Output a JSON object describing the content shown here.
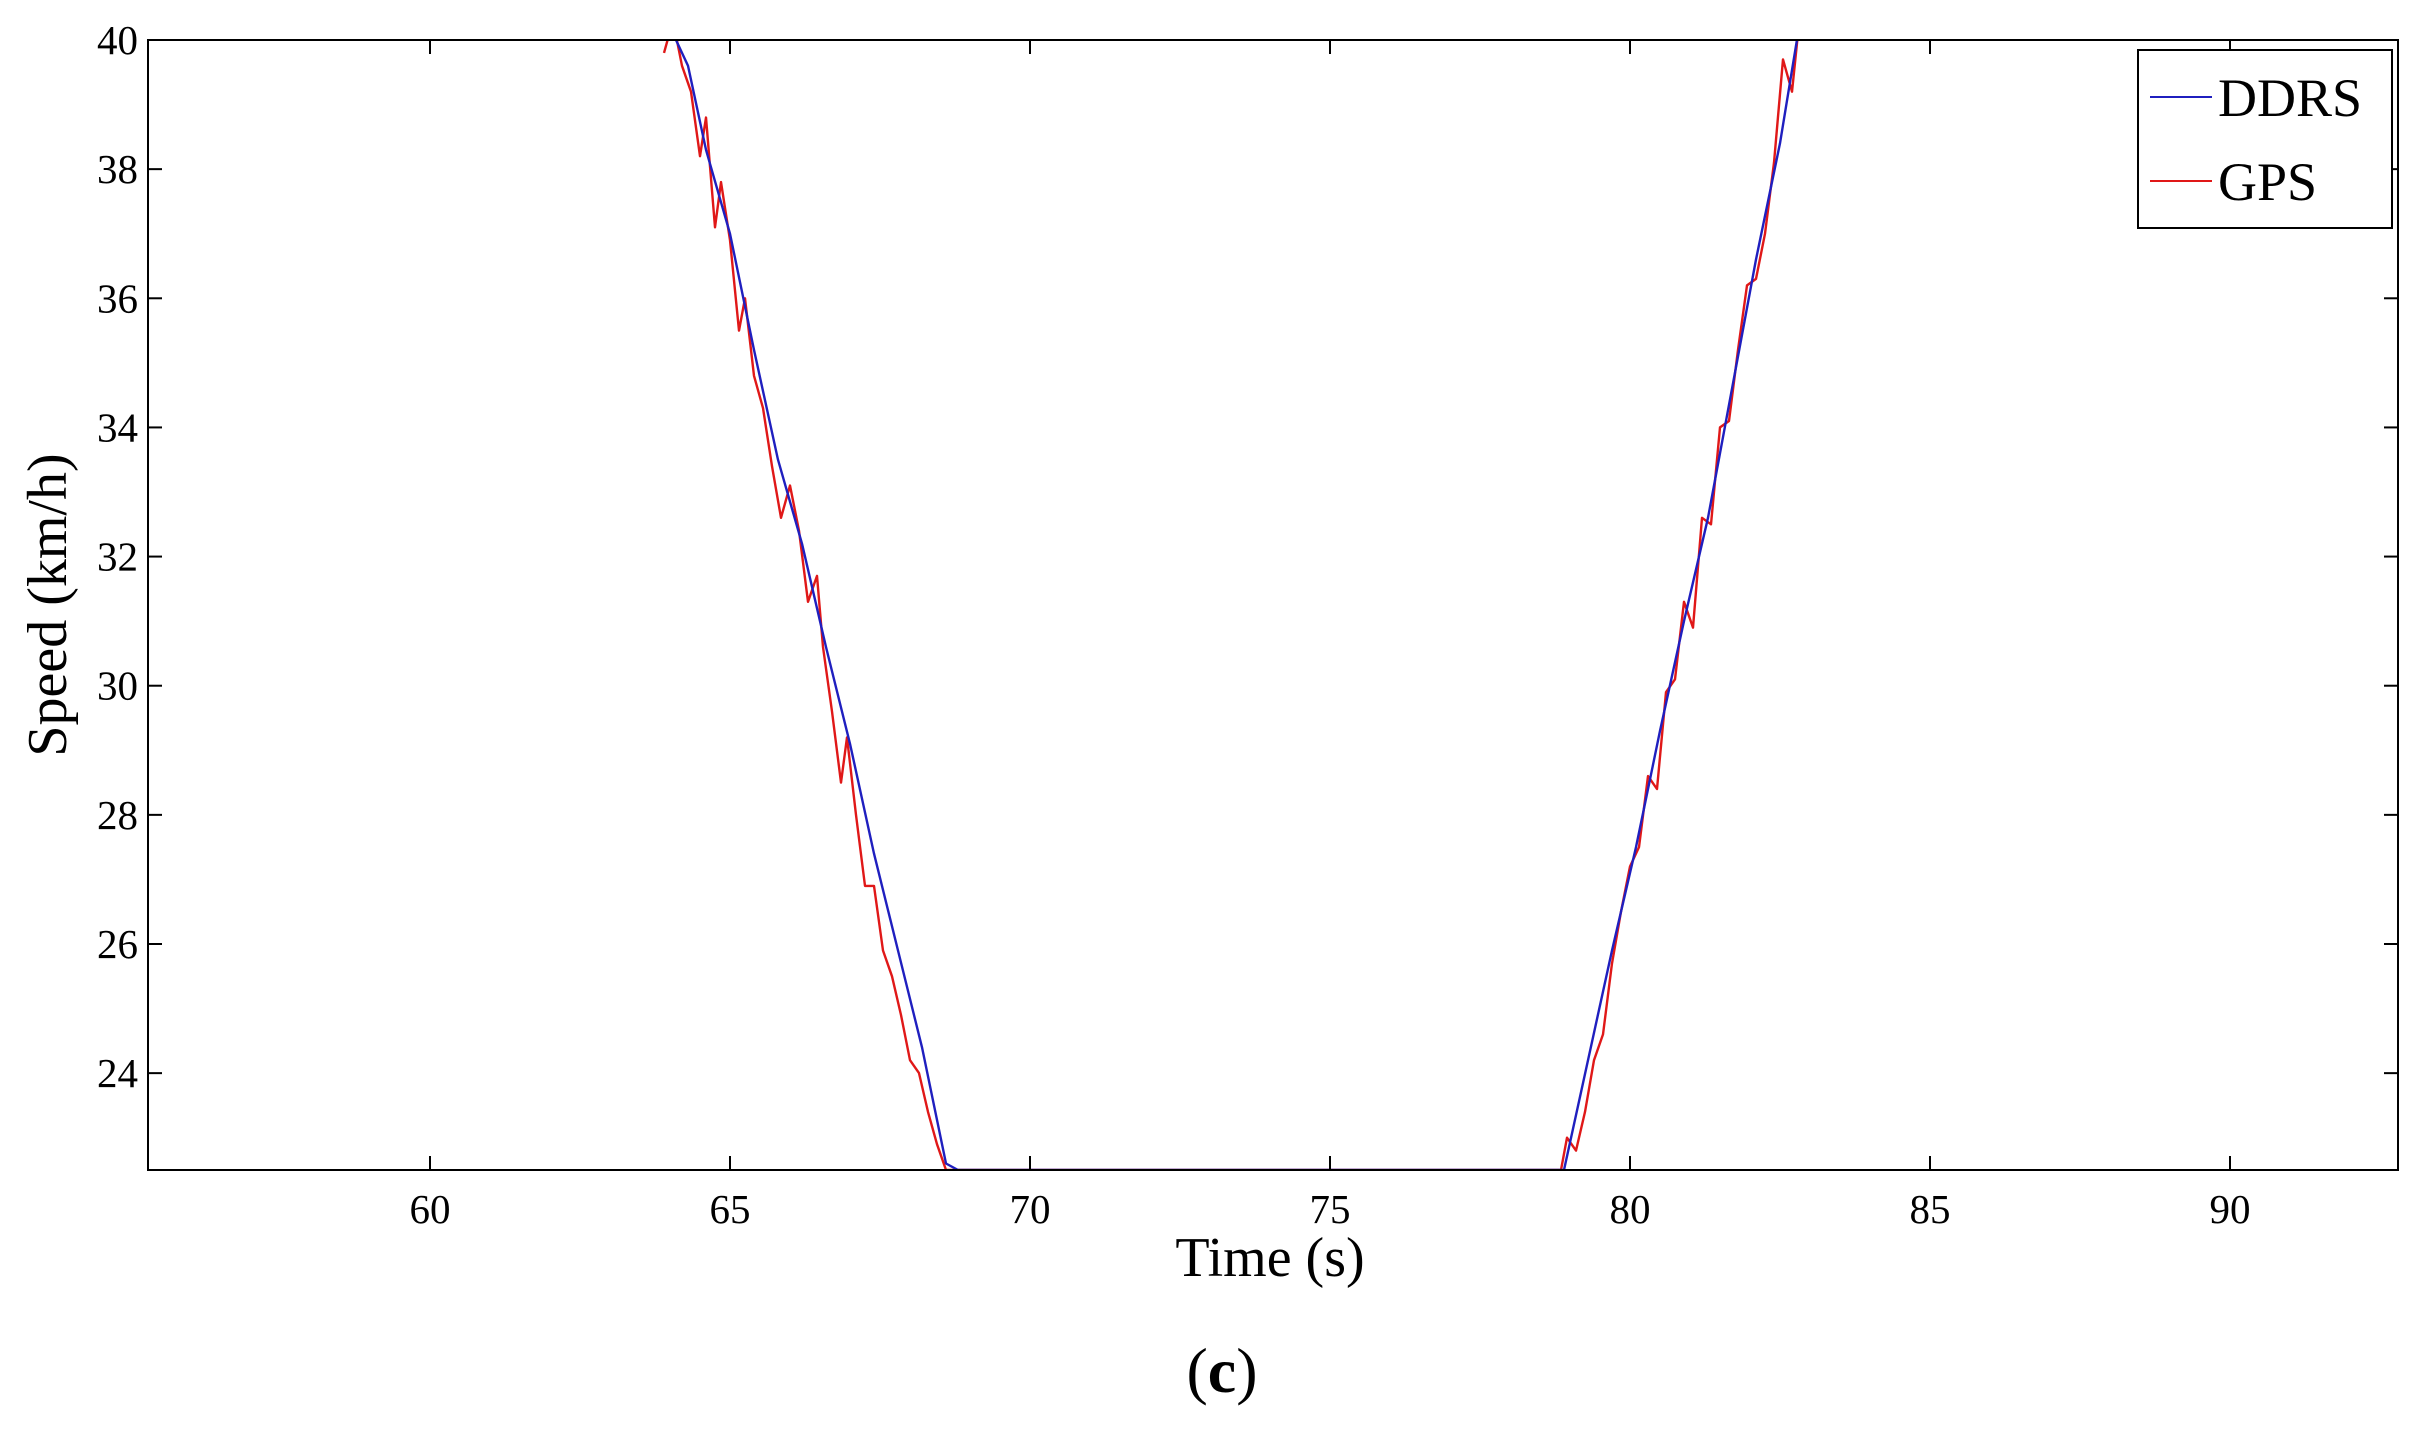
{
  "chart_data": {
    "type": "line",
    "xlabel": "Time (s)",
    "ylabel": "Speed (km/h)",
    "xlim": [
      55.3,
      92.8
    ],
    "ylim": [
      22.5,
      40
    ],
    "xticks": [
      60,
      65,
      70,
      75,
      80,
      85,
      90
    ],
    "yticks": [
      24,
      26,
      28,
      30,
      32,
      34,
      36,
      38,
      40
    ],
    "grid": false,
    "legend_position": "top-right",
    "series": [
      {
        "name": "DDRS",
        "color": "#1f1fbf",
        "x": [
          64.0,
          64.3,
          64.6,
          65.0,
          65.4,
          65.8,
          66.2,
          66.6,
          67.0,
          67.4,
          67.8,
          68.2,
          68.6,
          68.8,
          78.9,
          79.3,
          79.7,
          80.1,
          80.5,
          80.9,
          81.3,
          81.7,
          82.1,
          82.5,
          82.8
        ],
        "y": [
          40.2,
          39.6,
          38.3,
          37.0,
          35.2,
          33.5,
          32.2,
          30.6,
          29.1,
          27.4,
          25.9,
          24.4,
          22.6,
          22.5,
          22.5,
          24.2,
          25.9,
          27.5,
          29.3,
          31.0,
          32.6,
          34.6,
          36.6,
          38.4,
          40.1
        ]
      },
      {
        "name": "GPS",
        "color": "#e01818",
        "x": [
          63.9,
          64.05,
          64.2,
          64.35,
          64.5,
          64.6,
          64.75,
          64.85,
          65.0,
          65.15,
          65.25,
          65.4,
          65.55,
          65.7,
          65.85,
          66.0,
          66.15,
          66.3,
          66.45,
          66.55,
          66.7,
          66.85,
          66.95,
          67.1,
          67.25,
          67.4,
          67.55,
          67.7,
          67.85,
          68.0,
          68.15,
          68.3,
          68.45,
          68.6,
          68.7,
          78.85,
          78.95,
          79.1,
          79.25,
          79.4,
          79.55,
          79.7,
          79.85,
          80.0,
          80.15,
          80.3,
          80.45,
          80.6,
          80.75,
          80.9,
          81.05,
          81.2,
          81.35,
          81.5,
          81.65,
          81.8,
          81.95,
          82.1,
          82.25,
          82.4,
          82.55,
          82.7,
          82.8
        ],
        "y": [
          39.8,
          40.3,
          39.6,
          39.2,
          38.2,
          38.8,
          37.1,
          37.8,
          36.9,
          35.5,
          36.0,
          34.8,
          34.3,
          33.4,
          32.6,
          33.1,
          32.4,
          31.3,
          31.7,
          30.6,
          29.6,
          28.5,
          29.2,
          28.0,
          26.9,
          26.9,
          25.9,
          25.5,
          24.9,
          24.2,
          24.0,
          23.4,
          22.9,
          22.5,
          22.5,
          22.5,
          23.0,
          22.8,
          23.4,
          24.2,
          24.6,
          25.7,
          26.5,
          27.2,
          27.5,
          28.6,
          28.4,
          29.9,
          30.1,
          31.3,
          30.9,
          32.6,
          32.5,
          34.0,
          34.1,
          35.2,
          36.2,
          36.3,
          37.0,
          38.1,
          39.7,
          39.2,
          40.1
        ]
      }
    ]
  },
  "caption": {
    "open": "(",
    "letter": "c",
    "close": ")"
  }
}
